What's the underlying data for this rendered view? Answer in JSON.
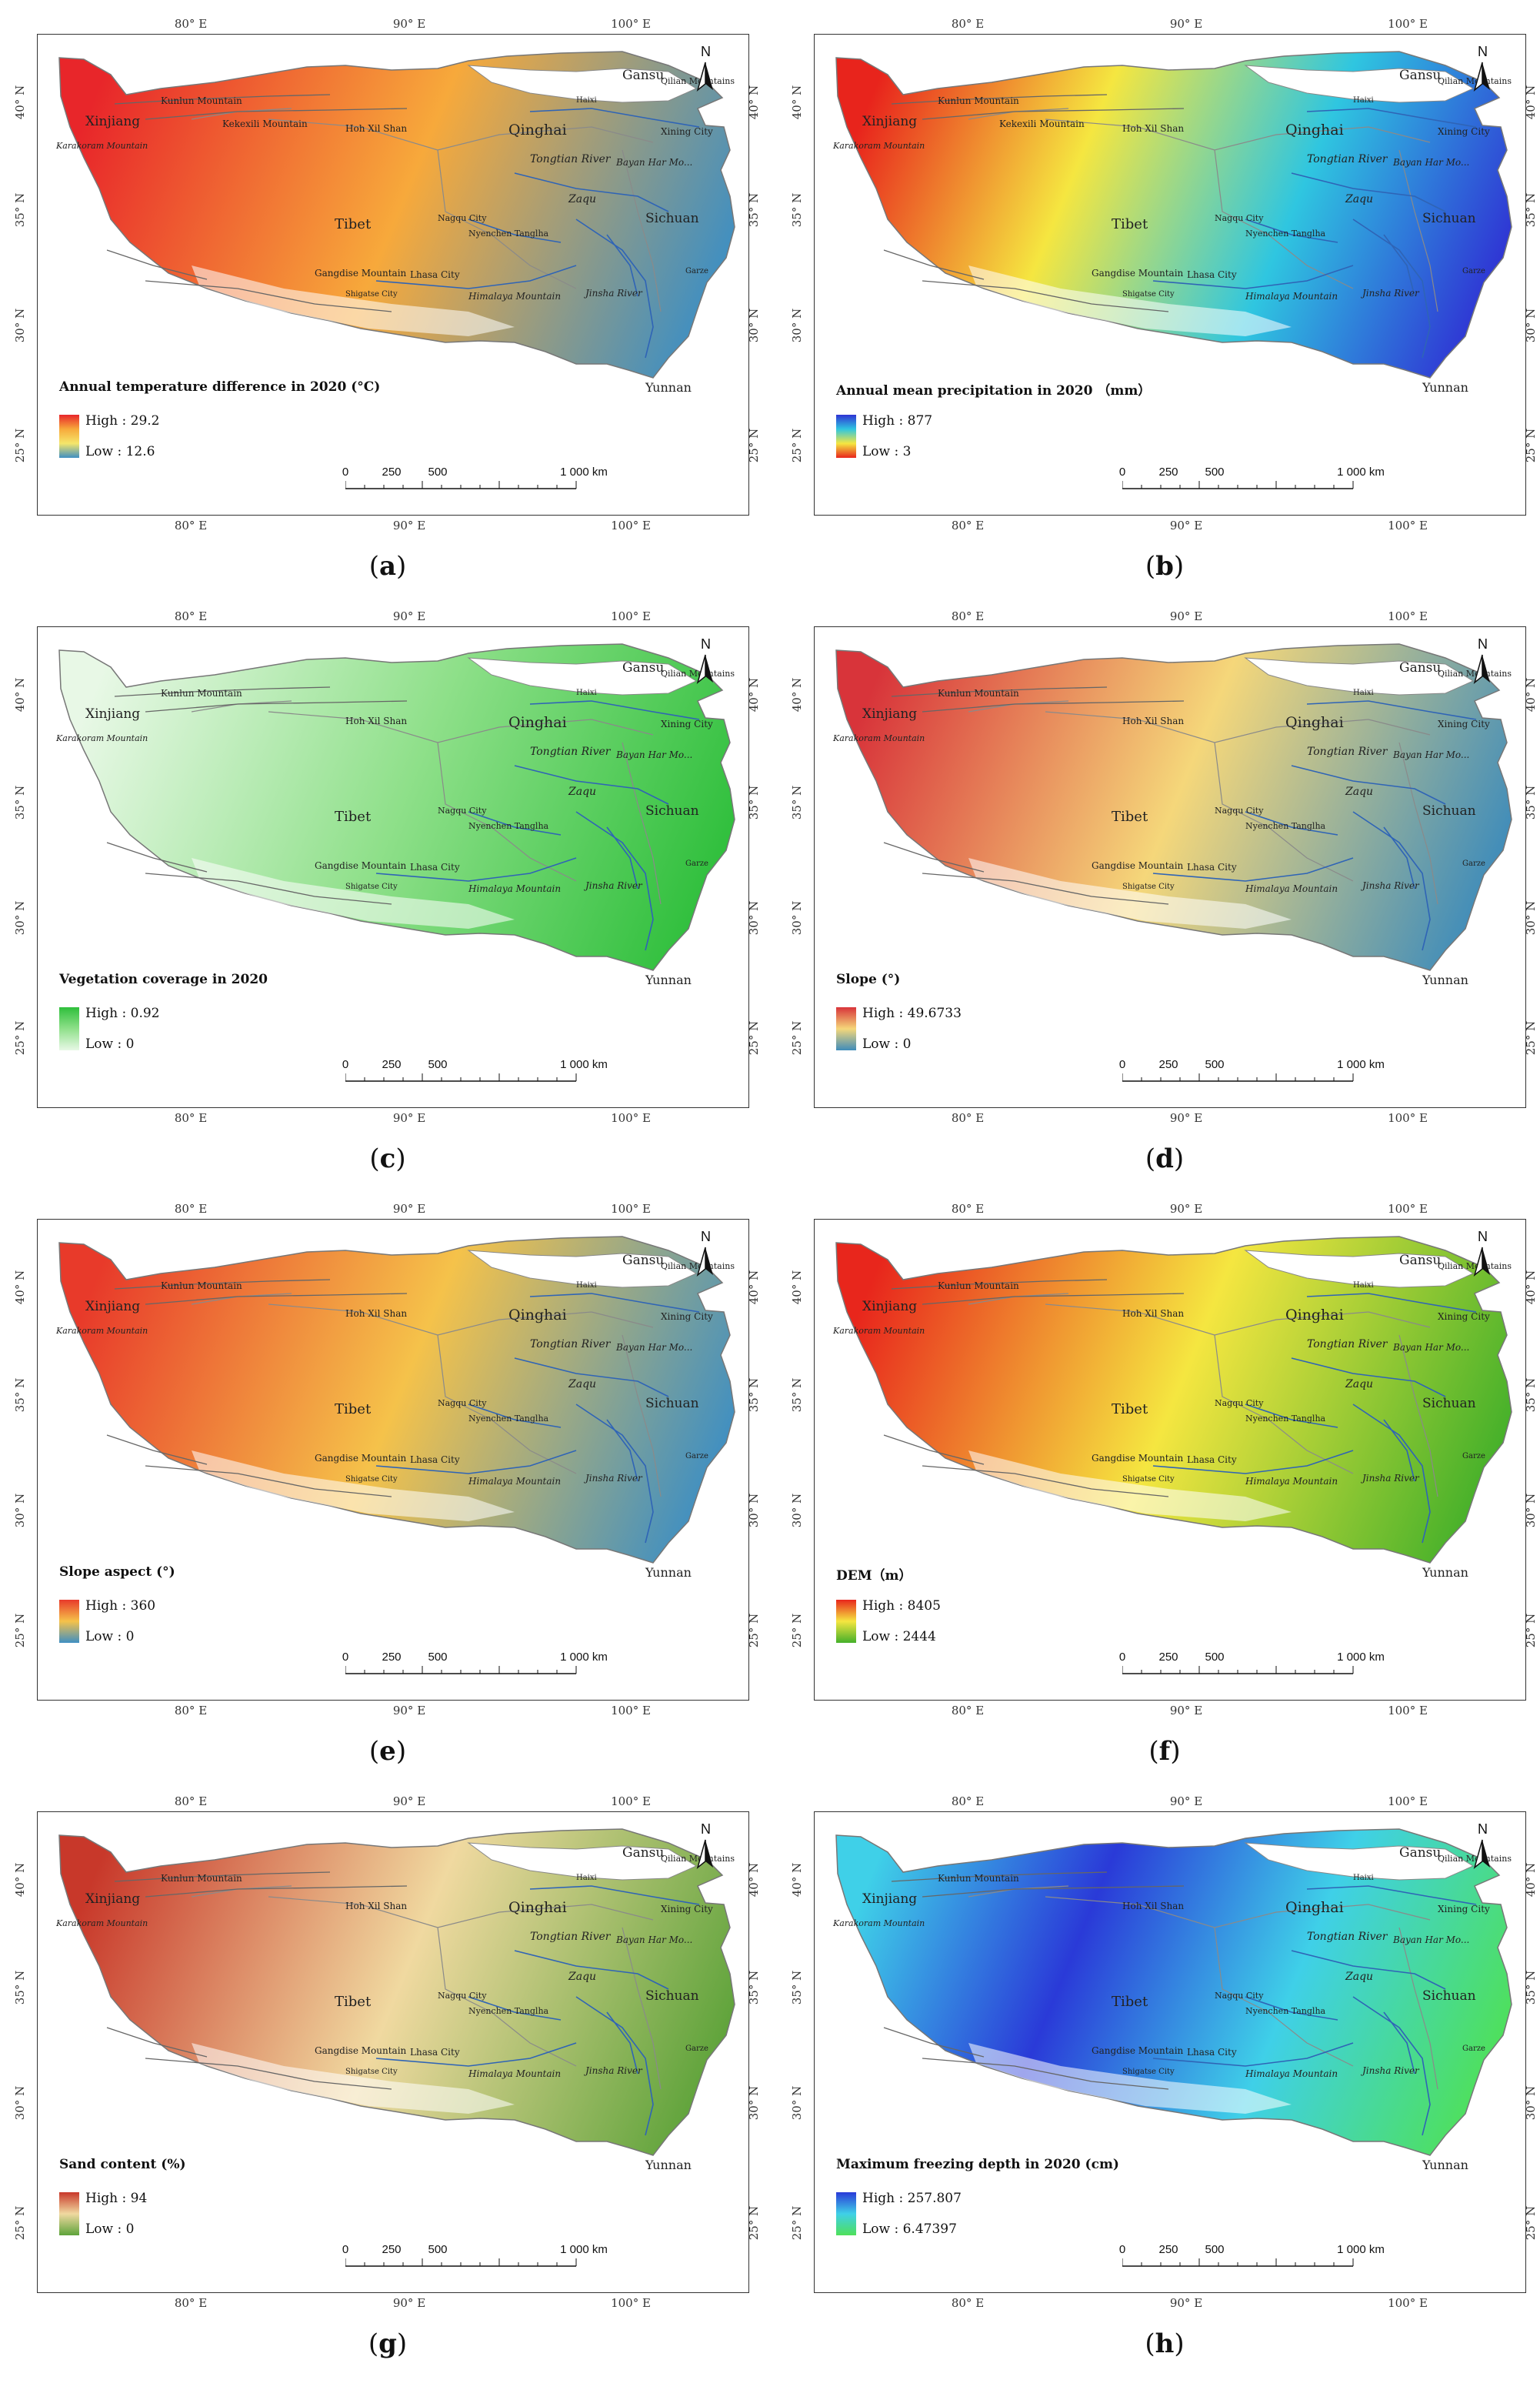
{
  "axes": {
    "lon_ticks": [
      "80° E",
      "90° E",
      "100° E"
    ],
    "lat_ticks": [
      "40° N",
      "35° N",
      "30° N",
      "25° N"
    ]
  },
  "north_label": "N",
  "scale": {
    "labels": [
      "0",
      "250",
      "500",
      "1 000 km"
    ]
  },
  "places": {
    "gansu": "Gansu",
    "qilian": "Qilian Mountains",
    "haixi": "Haixi",
    "xining": "Xining City",
    "xinjiang": "Xinjiang",
    "kunlun": "Kunlun Mountain",
    "kekexili": "Kekexili Mountain",
    "hohxil": "Hoh Xil Shan",
    "qinghai": "Qinghai",
    "tongtian": "Tongtian River",
    "bayankala": "Bayan Har Mo...",
    "zaqu": "Zaqu",
    "sichuan": "Sichuan",
    "tibet": "Tibet",
    "nyenchen": "Nyenchen Tanglha",
    "nagqu": "Nagqu City",
    "gangdise": "Gangdise Mountain",
    "lhasa": "Lhasa City",
    "himalaya": "Himalaya Mountain",
    "jinsha": "Jinsha River",
    "yunnan": "Yunnan",
    "karakoram": "Karakoram Mountain",
    "shigatse": "Shigatse City",
    "garze": "Garze"
  },
  "panels": [
    {
      "id": "a",
      "caption": "a",
      "legend_title": "Annual temperature difference in 2020 (°C)",
      "high": "High : 29.2",
      "low": "Low : 12.6",
      "colors": [
        "#e8262a",
        "#f7a93b",
        "#f5e66a",
        "#3f8fc2"
      ],
      "base": "#f3b64b"
    },
    {
      "id": "b",
      "caption": "b",
      "legend_title": "Annual mean precipitation in 2020 （mm）",
      "high": "High : 877",
      "low": "Low : 3",
      "colors": [
        "#2f33d4",
        "#2fc6e0",
        "#f5e640",
        "#e8241c"
      ],
      "base": "#f28a2c"
    },
    {
      "id": "c",
      "caption": "c",
      "legend_title": "Vegetation coverage in 2020",
      "high": "High : 0.92",
      "low": "Low : 0",
      "colors": [
        "#2fbf3c",
        "#8fe08a",
        "#e8f8e6"
      ],
      "base": "#9fe89b"
    },
    {
      "id": "d",
      "caption": "d",
      "legend_title": "Slope (°)",
      "high": "High : 49.6733",
      "low": "Low : 0",
      "colors": [
        "#d8343a",
        "#f5d77a",
        "#3f8cba"
      ],
      "base": "#5c93b5"
    },
    {
      "id": "e",
      "caption": "e",
      "legend_title": "Slope aspect (°)",
      "high": "High : 360",
      "low": "Low : 0",
      "colors": [
        "#e83a2a",
        "#f5c24a",
        "#3f8fc2"
      ],
      "base": "#b5a16a"
    },
    {
      "id": "f",
      "caption": "f",
      "legend_title": "DEM（m）",
      "high": "High : 8405",
      "low": "Low : 2444",
      "colors": [
        "#e8261c",
        "#f5e640",
        "#44b02a"
      ],
      "base": "#f2a62c"
    },
    {
      "id": "g",
      "caption": "g",
      "legend_title": "Sand content (%)",
      "high": "High : 94",
      "low": "Low : 0",
      "colors": [
        "#c8382a",
        "#f0d9a0",
        "#5ea33a"
      ],
      "base": "#f0c89a"
    },
    {
      "id": "h",
      "caption": "h",
      "legend_title": "Maximum freezing depth in 2020 (cm)",
      "high": "High : 257.807",
      "low": "Low : 6.47397",
      "colors": [
        "#2a3ad8",
        "#3fd0e8",
        "#4fe05a"
      ],
      "base": "#5cc8e8"
    }
  ]
}
